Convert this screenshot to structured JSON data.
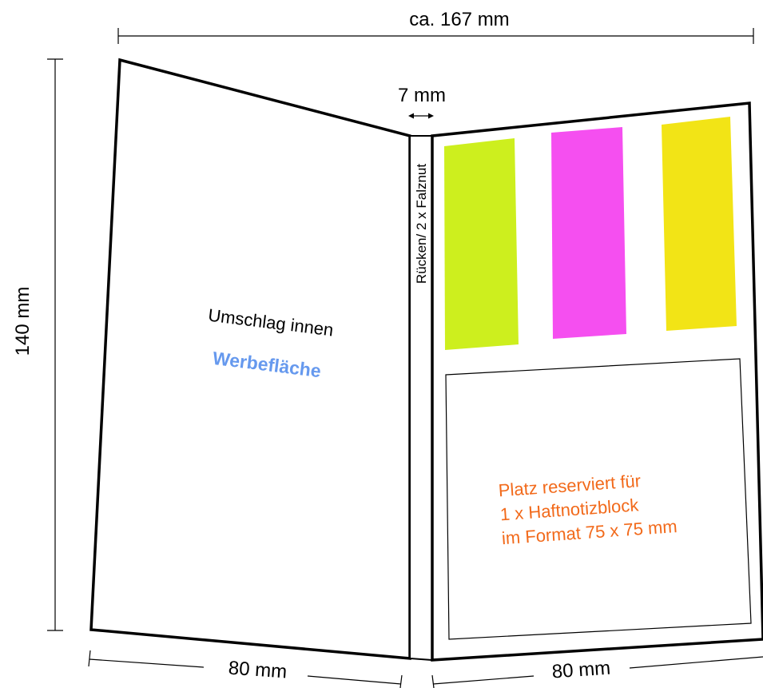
{
  "dimensions": {
    "total_width": "ca. 167 mm",
    "height": "140 mm",
    "spine": "7 mm",
    "left_panel_width": "80 mm",
    "right_panel_width": "80 mm"
  },
  "left_panel": {
    "label": "Umschlag innen",
    "ad_area": "Werbefläche"
  },
  "spine": {
    "label": "Rücken/ 2 x Falznut"
  },
  "right_panel": {
    "note_lines": [
      "Platz reserviert für",
      "1 x Haftnotizblock",
      "im Format 75 x 75 mm"
    ]
  },
  "colors": {
    "outline": "#000000",
    "ad_text": "#6699ee",
    "note_text": "#f26a1b",
    "strip_green": "#cdef1e",
    "strip_magenta": "#f54ff0",
    "strip_yellow": "#f2e416"
  }
}
